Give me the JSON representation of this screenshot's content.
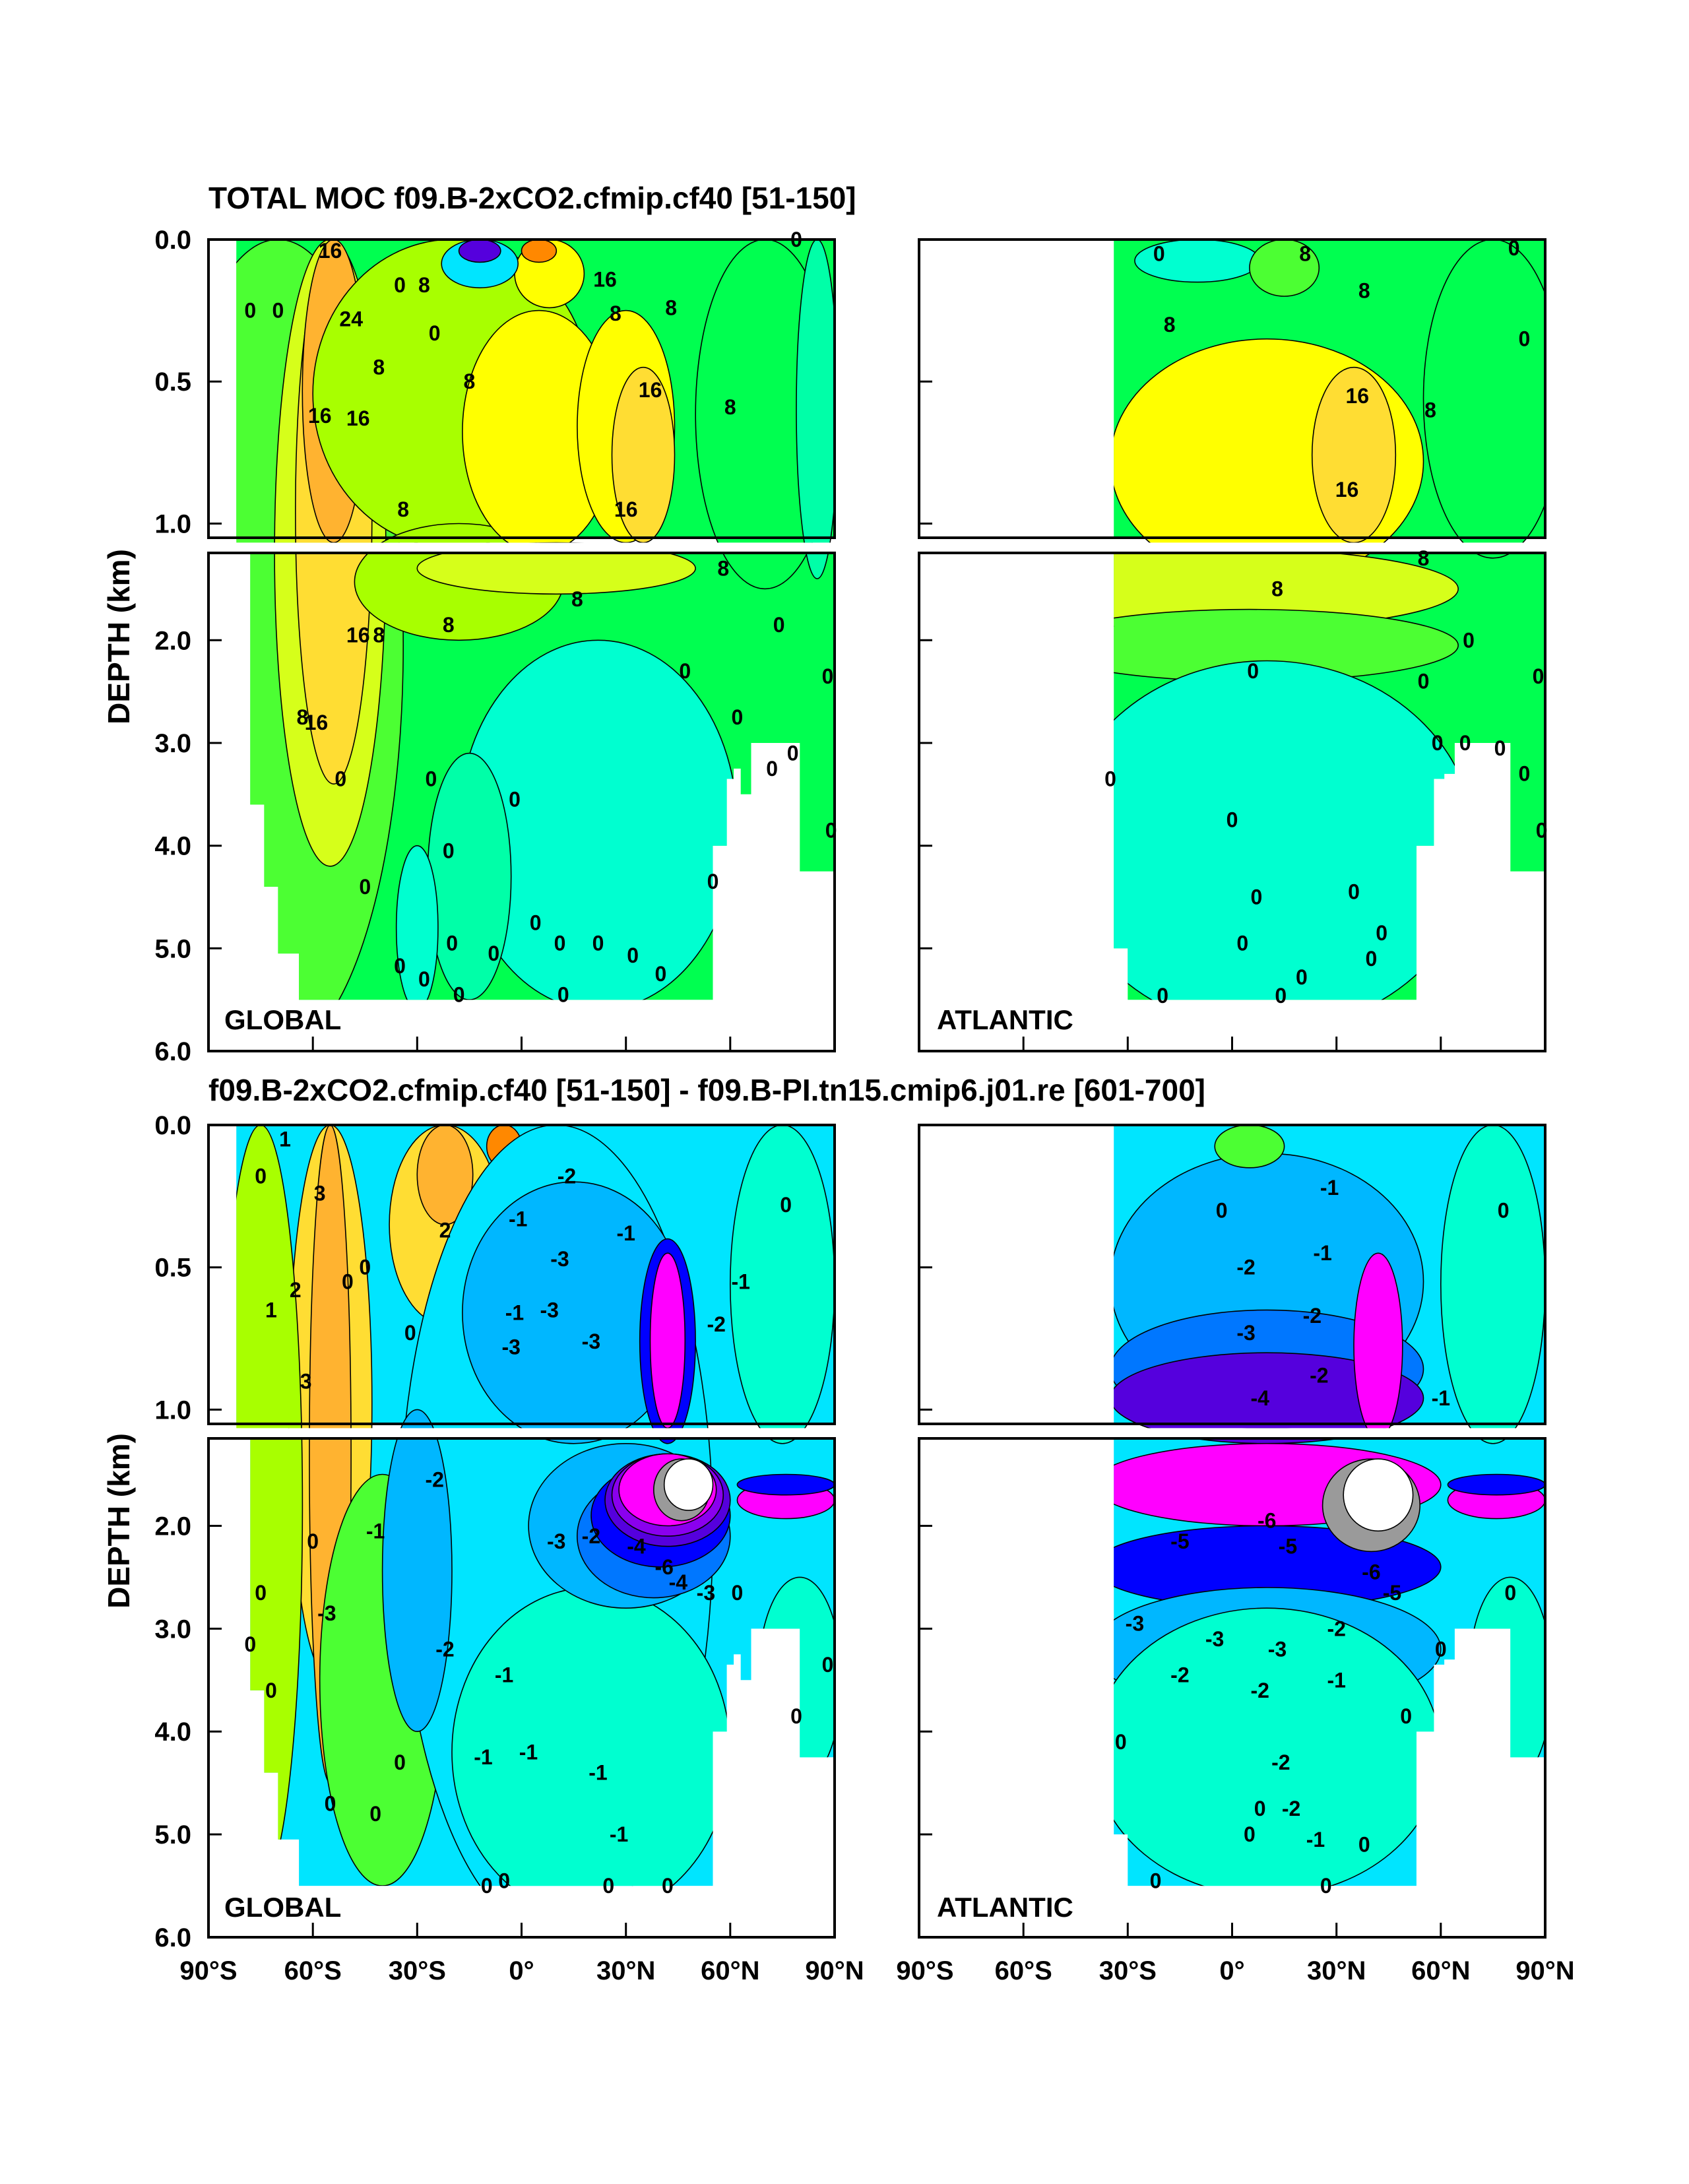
{
  "titles": {
    "top": "TOTAL MOC f09.B-2xCO2.cfmip.cf40 [51-150]",
    "bottom": "f09.B-2xCO2.cfmip.cf40 [51-150] - f09.B-PI.tn15.cmip6.j01.re [601-700]"
  },
  "ylabel": "DEPTH (km)",
  "region_labels": {
    "global": "GLOBAL",
    "atlantic": "ATLANTIC"
  },
  "chart_data": [
    {
      "type": "heatmap",
      "title": "TOTAL MOC f09.B-2xCO2.cfmip.cf40 [51-150]",
      "ylabel": "DEPTH (km)",
      "xlim": [
        -90,
        90
      ],
      "ylim": [
        6.0,
        0.0
      ],
      "x_ticks": [
        "90°S",
        "60°S",
        "30°S",
        "0°",
        "30°N",
        "60°N",
        "90°N"
      ],
      "y_ticks": [
        "0.0",
        "0.5",
        "1.0",
        "2.0",
        "3.0",
        "4.0",
        "5.0",
        "6.0"
      ],
      "panels": [
        {
          "region": "GLOBAL",
          "xlim": [
            -90,
            90
          ],
          "contour_labels": [
            {
              "text": "16",
              "x": -55,
              "y": 0.04
            },
            {
              "text": "24",
              "x": -49,
              "y": 0.28
            },
            {
              "text": "16",
              "x": -58,
              "y": 0.62
            },
            {
              "text": "16",
              "x": -47,
              "y": 0.63
            },
            {
              "text": "8",
              "x": -41,
              "y": 0.45
            },
            {
              "text": "0",
              "x": -78,
              "y": 0.25
            },
            {
              "text": "0",
              "x": -70,
              "y": 0.25
            },
            {
              "text": "0",
              "x": -35,
              "y": 0.16
            },
            {
              "text": "8",
              "x": -28,
              "y": 0.16
            },
            {
              "text": "0",
              "x": -25,
              "y": 0.33
            },
            {
              "text": "16",
              "x": 24,
              "y": 0.14
            },
            {
              "text": "8",
              "x": 27,
              "y": 0.26
            },
            {
              "text": "8",
              "x": 43,
              "y": 0.24
            },
            {
              "text": "8",
              "x": -15,
              "y": 0.5
            },
            {
              "text": "16",
              "x": 37,
              "y": 0.53
            },
            {
              "text": "8",
              "x": 60,
              "y": 0.59
            },
            {
              "text": "8",
              "x": -34,
              "y": 0.95
            },
            {
              "text": "16",
              "x": 30,
              "y": 0.95
            },
            {
              "text": "0",
              "x": 79,
              "y": 0.0
            },
            {
              "text": "16",
              "x": -47,
              "y": 1.95
            },
            {
              "text": "8",
              "x": -41,
              "y": 1.95
            },
            {
              "text": "8",
              "x": -21,
              "y": 1.85
            },
            {
              "text": "8",
              "x": 16,
              "y": 1.6
            },
            {
              "text": "8",
              "x": 58,
              "y": 1.3
            },
            {
              "text": "0",
              "x": 47,
              "y": 2.3
            },
            {
              "text": "0",
              "x": 74,
              "y": 1.85
            },
            {
              "text": "16",
              "x": -59,
              "y": 2.8
            },
            {
              "text": "8",
              "x": -63,
              "y": 2.75
            },
            {
              "text": "0",
              "x": -52,
              "y": 3.35
            },
            {
              "text": "0",
              "x": -26,
              "y": 3.35
            },
            {
              "text": "0",
              "x": -21,
              "y": 4.05
            },
            {
              "text": "0",
              "x": -2,
              "y": 3.55
            },
            {
              "text": "0",
              "x": 62,
              "y": 2.75
            },
            {
              "text": "0",
              "x": 72,
              "y": 3.25
            },
            {
              "text": "0",
              "x": 78,
              "y": 3.1
            },
            {
              "text": "0",
              "x": 88,
              "y": 2.35
            },
            {
              "text": "0",
              "x": 89,
              "y": 3.85
            },
            {
              "text": "0",
              "x": 55,
              "y": 4.35
            },
            {
              "text": "0",
              "x": -45,
              "y": 4.4
            },
            {
              "text": "0",
              "x": -35,
              "y": 5.17
            },
            {
              "text": "0",
              "x": -28,
              "y": 5.3
            },
            {
              "text": "0",
              "x": -20,
              "y": 4.95
            },
            {
              "text": "0",
              "x": -8,
              "y": 5.05
            },
            {
              "text": "0",
              "x": 4,
              "y": 4.75
            },
            {
              "text": "0",
              "x": 11,
              "y": 4.95
            },
            {
              "text": "0",
              "x": 22,
              "y": 4.95
            },
            {
              "text": "0",
              "x": 32,
              "y": 5.07
            },
            {
              "text": "0",
              "x": 40,
              "y": 5.25
            },
            {
              "text": "0",
              "x": -18,
              "y": 5.45
            },
            {
              "text": "0",
              "x": 12,
              "y": 5.45
            }
          ]
        },
        {
          "region": "ATLANTIC",
          "xlim": [
            -90,
            90
          ],
          "contour_labels": [
            {
              "text": "0",
              "x": -21,
              "y": 0.05
            },
            {
              "text": "8",
              "x": 21,
              "y": 0.05
            },
            {
              "text": "8",
              "x": -18,
              "y": 0.3
            },
            {
              "text": "8",
              "x": 38,
              "y": 0.18
            },
            {
              "text": "16",
              "x": 36,
              "y": 0.55
            },
            {
              "text": "16",
              "x": 33,
              "y": 0.88
            },
            {
              "text": "8",
              "x": 57,
              "y": 0.6
            },
            {
              "text": "0",
              "x": 81,
              "y": 0.03
            },
            {
              "text": "0",
              "x": 84,
              "y": 0.35
            },
            {
              "text": "8",
              "x": 55,
              "y": 1.2
            },
            {
              "text": "8",
              "x": 13,
              "y": 1.5
            },
            {
              "text": "0",
              "x": 6,
              "y": 2.3
            },
            {
              "text": "0",
              "x": 55,
              "y": 2.4
            },
            {
              "text": "0",
              "x": 68,
              "y": 2.0
            },
            {
              "text": "0",
              "x": 59,
              "y": 3.0
            },
            {
              "text": "0",
              "x": 67,
              "y": 3.0
            },
            {
              "text": "0",
              "x": 77,
              "y": 3.05
            },
            {
              "text": "0",
              "x": 84,
              "y": 3.3
            },
            {
              "text": "0",
              "x": 88,
              "y": 2.35
            },
            {
              "text": "0",
              "x": 89,
              "y": 3.85
            },
            {
              "text": "0",
              "x": -35,
              "y": 3.35
            },
            {
              "text": "0",
              "x": 0,
              "y": 3.75
            },
            {
              "text": "0",
              "x": 7,
              "y": 4.5
            },
            {
              "text": "0",
              "x": 3,
              "y": 4.95
            },
            {
              "text": "0",
              "x": 35,
              "y": 4.45
            },
            {
              "text": "0",
              "x": 43,
              "y": 4.85
            },
            {
              "text": "0",
              "x": 40,
              "y": 5.1
            },
            {
              "text": "0",
              "x": 20,
              "y": 5.28
            },
            {
              "text": "0",
              "x": -20,
              "y": 5.46
            },
            {
              "text": "0",
              "x": 14,
              "y": 5.46
            }
          ]
        }
      ]
    },
    {
      "type": "heatmap",
      "title": "f09.B-2xCO2.cfmip.cf40 [51-150] - f09.B-PI.tn15.cmip6.j01.re [601-700]",
      "ylabel": "DEPTH (km)",
      "xlim": [
        -90,
        90
      ],
      "ylim": [
        6.0,
        0.0
      ],
      "x_ticks": [
        "90°S",
        "60°S",
        "30°S",
        "0°",
        "30°N",
        "60°N",
        "90°N"
      ],
      "y_ticks": [
        "0.0",
        "0.5",
        "1.0",
        "2.0",
        "3.0",
        "4.0",
        "5.0",
        "6.0"
      ],
      "panels": [
        {
          "region": "GLOBAL",
          "xlim": [
            -90,
            90
          ],
          "contour_labels": [
            {
              "text": "1",
              "x": -68,
              "y": 0.05
            },
            {
              "text": "3",
              "x": -58,
              "y": 0.24
            },
            {
              "text": "2",
              "x": -65,
              "y": 0.58
            },
            {
              "text": "3",
              "x": -62,
              "y": 0.9
            },
            {
              "text": "1",
              "x": -72,
              "y": 0.65
            },
            {
              "text": "0",
              "x": -75,
              "y": 0.18
            },
            {
              "text": "0",
              "x": -45,
              "y": 0.5
            },
            {
              "text": "0",
              "x": -50,
              "y": 0.55
            },
            {
              "text": "2",
              "x": -22,
              "y": 0.37
            },
            {
              "text": "0",
              "x": -32,
              "y": 0.73
            },
            {
              "text": "-1",
              "x": -1,
              "y": 0.33
            },
            {
              "text": "-3",
              "x": 11,
              "y": 0.47
            },
            {
              "text": "-2",
              "x": 13,
              "y": 0.18
            },
            {
              "text": "-1",
              "x": -2,
              "y": 0.66
            },
            {
              "text": "-3",
              "x": 8,
              "y": 0.65
            },
            {
              "text": "-3",
              "x": -3,
              "y": 0.78
            },
            {
              "text": "-3",
              "x": 20,
              "y": 0.76
            },
            {
              "text": "-1",
              "x": 30,
              "y": 0.38
            },
            {
              "text": "-2",
              "x": 56,
              "y": 0.7
            },
            {
              "text": "-1",
              "x": 63,
              "y": 0.55
            },
            {
              "text": "0",
              "x": 76,
              "y": 0.28
            },
            {
              "text": "0",
              "x": -60,
              "y": 2.15
            },
            {
              "text": "-1",
              "x": -42,
              "y": 2.05
            },
            {
              "text": "-2",
              "x": -25,
              "y": 1.55
            },
            {
              "text": "-3",
              "x": 10,
              "y": 2.15
            },
            {
              "text": "-2",
              "x": 20,
              "y": 2.1
            },
            {
              "text": "-4",
              "x": 33,
              "y": 2.2
            },
            {
              "text": "-6",
              "x": 41,
              "y": 2.4
            },
            {
              "text": "-4",
              "x": 45,
              "y": 2.55
            },
            {
              "text": "-3",
              "x": 53,
              "y": 2.65
            },
            {
              "text": "-3",
              "x": -56,
              "y": 2.85
            },
            {
              "text": "-2",
              "x": -22,
              "y": 3.2
            },
            {
              "text": "-1",
              "x": -5,
              "y": 3.45
            },
            {
              "text": "-1",
              "x": -11,
              "y": 4.25
            },
            {
              "text": "-1",
              "x": 2,
              "y": 4.2
            },
            {
              "text": "-1",
              "x": 22,
              "y": 4.4
            },
            {
              "text": "-1",
              "x": 28,
              "y": 5.0
            },
            {
              "text": "0",
              "x": -75,
              "y": 2.65
            },
            {
              "text": "0",
              "x": -78,
              "y": 3.15
            },
            {
              "text": "0",
              "x": -72,
              "y": 3.6
            },
            {
              "text": "0",
              "x": -55,
              "y": 4.7
            },
            {
              "text": "0",
              "x": -42,
              "y": 4.8
            },
            {
              "text": "0",
              "x": -35,
              "y": 4.3
            },
            {
              "text": "0",
              "x": -5,
              "y": 5.45
            },
            {
              "text": "0",
              "x": -10,
              "y": 5.5
            },
            {
              "text": "0",
              "x": 25,
              "y": 5.5
            },
            {
              "text": "0",
              "x": 42,
              "y": 5.5
            },
            {
              "text": "0",
              "x": 62,
              "y": 2.65
            },
            {
              "text": "0",
              "x": 79,
              "y": 3.85
            },
            {
              "text": "0",
              "x": 88,
              "y": 3.35
            }
          ]
        },
        {
          "region": "ATLANTIC",
          "xlim": [
            -90,
            90
          ],
          "contour_labels": [
            {
              "text": "0",
              "x": -3,
              "y": 0.3
            },
            {
              "text": "-2",
              "x": 4,
              "y": 0.5
            },
            {
              "text": "-1",
              "x": 26,
              "y": 0.45
            },
            {
              "text": "-3",
              "x": 4,
              "y": 0.73
            },
            {
              "text": "-4",
              "x": 8,
              "y": 0.96
            },
            {
              "text": "-1",
              "x": 28,
              "y": 0.22
            },
            {
              "text": "-2",
              "x": 23,
              "y": 0.67
            },
            {
              "text": "-2",
              "x": 25,
              "y": 0.88
            },
            {
              "text": "-1",
              "x": 60,
              "y": 0.96
            },
            {
              "text": "0",
              "x": 78,
              "y": 0.3
            },
            {
              "text": "-5",
              "x": -15,
              "y": 2.15
            },
            {
              "text": "-6",
              "x": 10,
              "y": 1.95
            },
            {
              "text": "-5",
              "x": 16,
              "y": 2.2
            },
            {
              "text": "-6",
              "x": 40,
              "y": 2.45
            },
            {
              "text": "-5",
              "x": 46,
              "y": 2.65
            },
            {
              "text": "-3",
              "x": -28,
              "y": 2.95
            },
            {
              "text": "-2",
              "x": -15,
              "y": 3.45
            },
            {
              "text": "-3",
              "x": -5,
              "y": 3.1
            },
            {
              "text": "-3",
              "x": 13,
              "y": 3.2
            },
            {
              "text": "-2",
              "x": 30,
              "y": 3.0
            },
            {
              "text": "-2",
              "x": 8,
              "y": 3.6
            },
            {
              "text": "-1",
              "x": 30,
              "y": 3.5
            },
            {
              "text": "-2",
              "x": 14,
              "y": 4.3
            },
            {
              "text": "-2",
              "x": 17,
              "y": 4.75
            },
            {
              "text": "-1",
              "x": 24,
              "y": 5.05
            },
            {
              "text": "0",
              "x": -32,
              "y": 4.1
            },
            {
              "text": "0",
              "x": 50,
              "y": 3.85
            },
            {
              "text": "0",
              "x": 60,
              "y": 3.2
            },
            {
              "text": "0",
              "x": 80,
              "y": 2.65
            },
            {
              "text": "0",
              "x": 8,
              "y": 4.75
            },
            {
              "text": "0",
              "x": 5,
              "y": 5.0
            },
            {
              "text": "0",
              "x": 38,
              "y": 5.1
            },
            {
              "text": "0",
              "x": -22,
              "y": 5.45
            },
            {
              "text": "0",
              "x": 27,
              "y": 5.5
            }
          ]
        }
      ]
    }
  ],
  "colors": {
    "white": "#ffffff",
    "gray": "#9a9a9a",
    "magenta": "#ff00ff",
    "violet": "#8a00ee",
    "purple": "#5500dd",
    "blue": "#0000ff",
    "mid_blue": "#0077ff",
    "sky": "#00b7ff",
    "cyan": "#00e5ff",
    "aqua": "#00ffd0",
    "mint": "#00ffa8",
    "green": "#00ff50",
    "lime": "#4cff33",
    "yellow_green": "#a8ff00",
    "light_green": "#d6ff1a",
    "yellow": "#ffff00",
    "gold": "#ffdd33",
    "orange": "#ffb330",
    "dark_orange": "#ff8800"
  }
}
